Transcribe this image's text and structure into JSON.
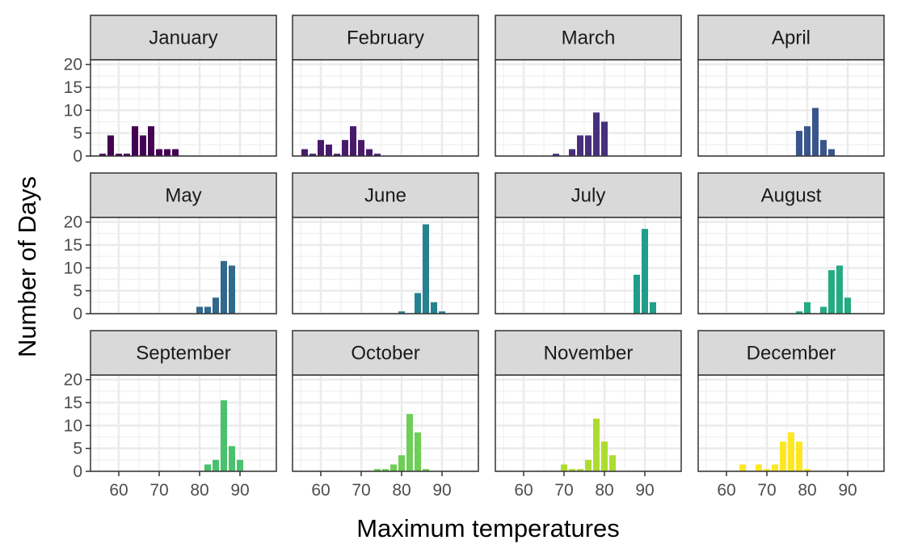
{
  "chart_data": {
    "type": "bar",
    "facet_by": "month",
    "xlabel": "Maximum temperatures",
    "ylabel": "Number of Days",
    "xlim": [
      53,
      99
    ],
    "ylim": [
      0,
      21
    ],
    "x_ticks": [
      60,
      70,
      80,
      90
    ],
    "y_ticks": [
      0,
      5,
      10,
      15,
      20
    ],
    "grid": true,
    "bin_width": 2,
    "panels": [
      {
        "name": "January",
        "color": "#440154",
        "bars": [
          [
            56,
            0.5
          ],
          [
            58,
            4.5
          ],
          [
            60,
            0.5
          ],
          [
            62,
            0.5
          ],
          [
            64,
            6.5
          ],
          [
            66,
            4.5
          ],
          [
            68,
            6.5
          ],
          [
            70,
            1.5
          ],
          [
            72,
            1.5
          ],
          [
            74,
            1.5
          ]
        ]
      },
      {
        "name": "February",
        "color": "#481a6c",
        "bars": [
          [
            56,
            1.5
          ],
          [
            58,
            0.5
          ],
          [
            60,
            3.5
          ],
          [
            62,
            2.5
          ],
          [
            64,
            0.5
          ],
          [
            66,
            3.5
          ],
          [
            68,
            6.5
          ],
          [
            70,
            3.5
          ],
          [
            72,
            1.5
          ],
          [
            74,
            0.5
          ]
        ]
      },
      {
        "name": "March",
        "color": "#472f7d",
        "bars": [
          [
            68,
            0.5
          ],
          [
            72,
            1.5
          ],
          [
            74,
            4.5
          ],
          [
            76,
            4.5
          ],
          [
            78,
            9.5
          ],
          [
            80,
            7.5
          ]
        ]
      },
      {
        "name": "April",
        "color": "#39568c",
        "bars": [
          [
            78,
            5.5
          ],
          [
            80,
            6.5
          ],
          [
            82,
            10.5
          ],
          [
            84,
            3.5
          ],
          [
            86,
            1.5
          ]
        ]
      },
      {
        "name": "May",
        "color": "#31688e",
        "bars": [
          [
            80,
            1.5
          ],
          [
            82,
            1.5
          ],
          [
            84,
            3.5
          ],
          [
            86,
            11.5
          ],
          [
            88,
            10.5
          ]
        ]
      },
      {
        "name": "June",
        "color": "#26828e",
        "bars": [
          [
            80,
            0.5
          ],
          [
            84,
            4.5
          ],
          [
            86,
            19.5
          ],
          [
            88,
            2.5
          ],
          [
            90,
            0.5
          ]
        ]
      },
      {
        "name": "July",
        "color": "#1f9e89",
        "bars": [
          [
            88,
            8.5
          ],
          [
            90,
            18.5
          ],
          [
            92,
            2.5
          ]
        ]
      },
      {
        "name": "August",
        "color": "#25ab82",
        "bars": [
          [
            78,
            0.5
          ],
          [
            80,
            2.5
          ],
          [
            84,
            1.5
          ],
          [
            86,
            9.5
          ],
          [
            88,
            10.5
          ],
          [
            90,
            3.5
          ]
        ]
      },
      {
        "name": "September",
        "color": "#4ac16d",
        "bars": [
          [
            82,
            1.5
          ],
          [
            84,
            2.5
          ],
          [
            86,
            15.5
          ],
          [
            88,
            5.5
          ],
          [
            90,
            2.5
          ]
        ]
      },
      {
        "name": "October",
        "color": "#6ece58",
        "bars": [
          [
            74,
            0.5
          ],
          [
            76,
            0.5
          ],
          [
            78,
            1.5
          ],
          [
            80,
            3.5
          ],
          [
            82,
            12.5
          ],
          [
            84,
            8.5
          ],
          [
            86,
            0.5
          ]
        ]
      },
      {
        "name": "November",
        "color": "#addc30",
        "bars": [
          [
            70,
            1.5
          ],
          [
            72,
            0.5
          ],
          [
            74,
            0.5
          ],
          [
            76,
            2.5
          ],
          [
            78,
            11.5
          ],
          [
            80,
            6.5
          ],
          [
            82,
            3.5
          ]
        ]
      },
      {
        "name": "December",
        "color": "#fde725",
        "bars": [
          [
            64,
            1.5
          ],
          [
            68,
            1.5
          ],
          [
            70,
            0.5
          ],
          [
            72,
            1.5
          ],
          [
            74,
            6.5
          ],
          [
            76,
            8.5
          ],
          [
            78,
            6.5
          ],
          [
            80,
            0.5
          ]
        ]
      }
    ]
  }
}
